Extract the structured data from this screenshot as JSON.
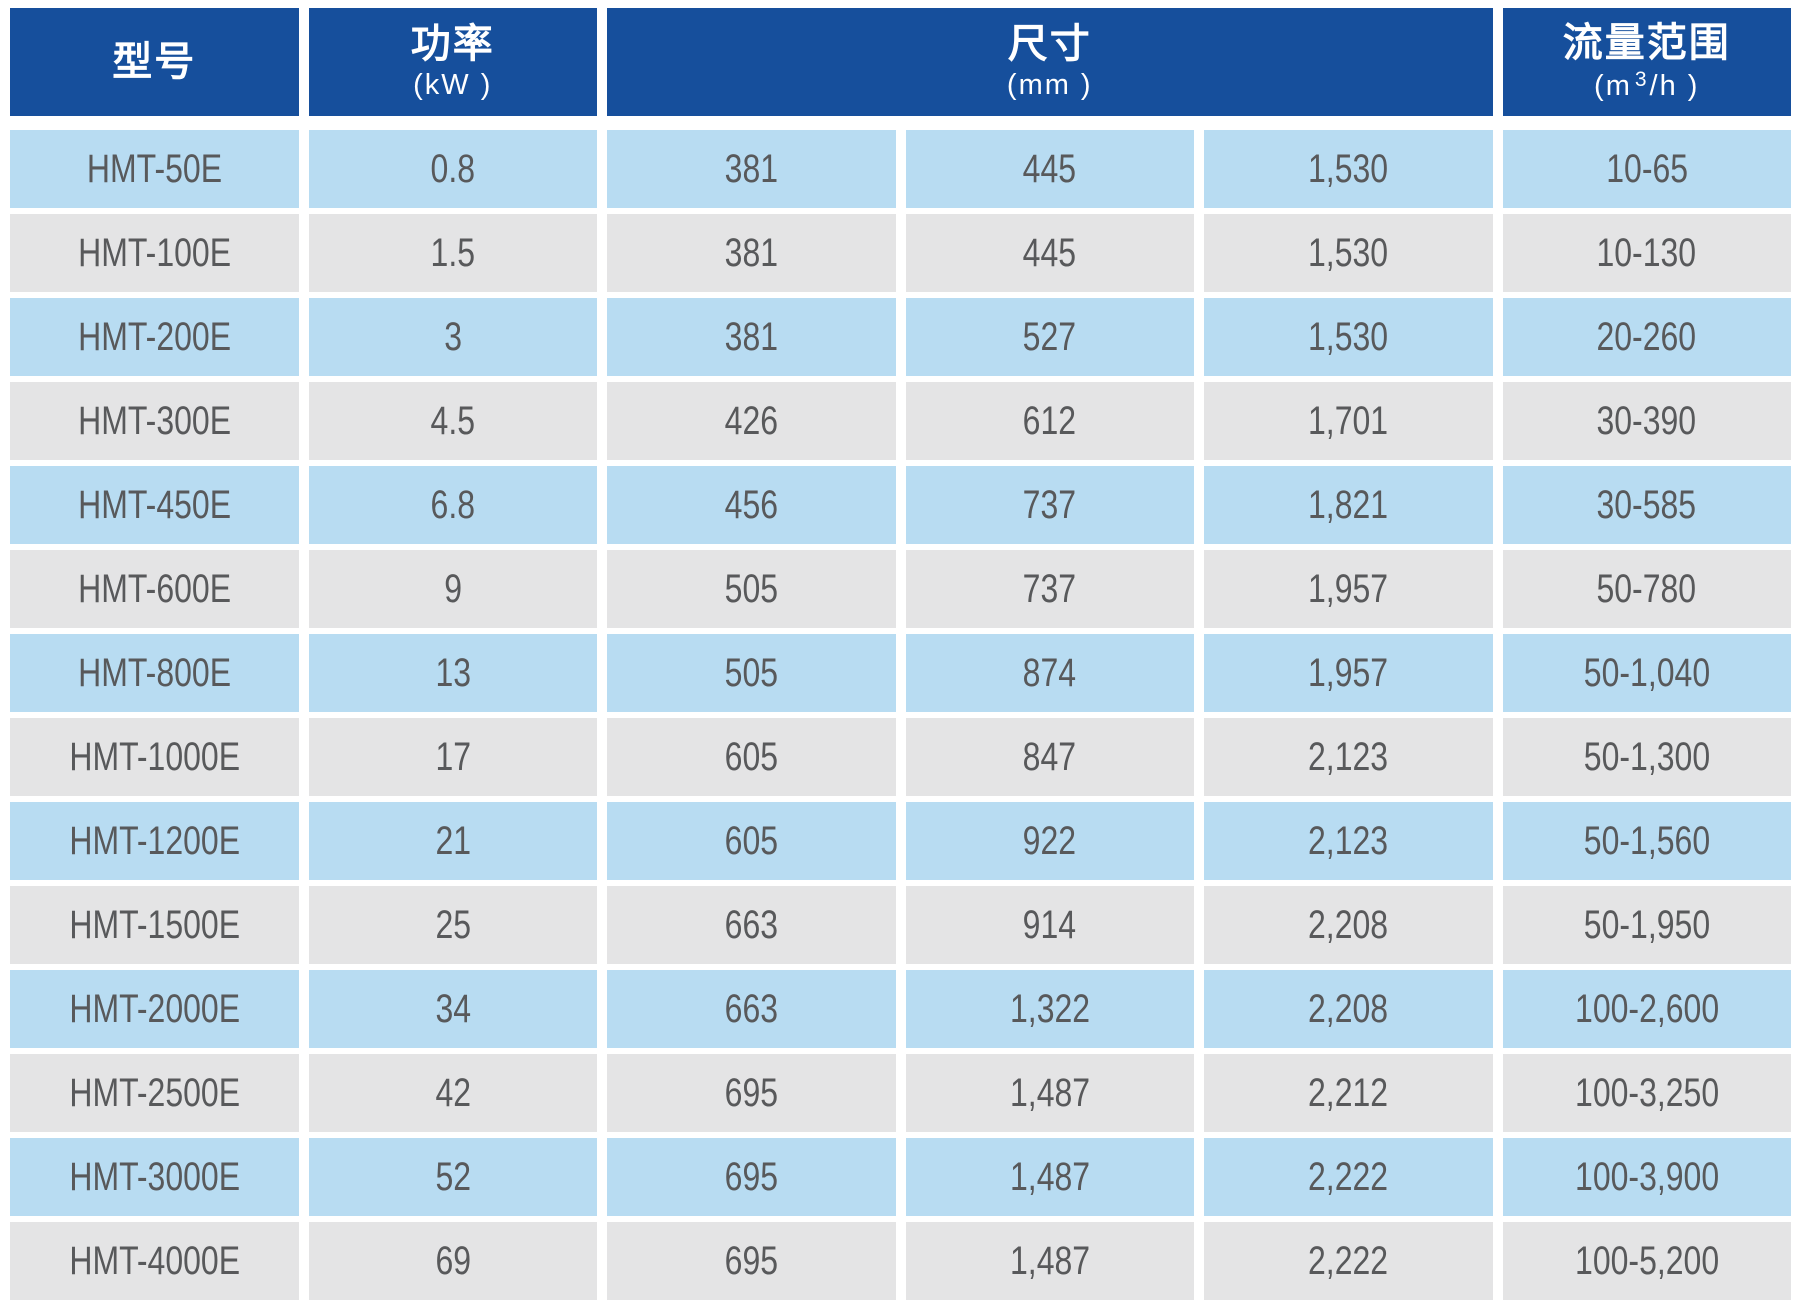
{
  "colors": {
    "header_bg": "#164f9c",
    "row_blue": "#b8dcf2",
    "row_gray": "#e4e4e5",
    "cell_text": "#58595b",
    "header_text": "#ffffff",
    "page_bg": "#ffffff"
  },
  "header": {
    "model_label": "型号",
    "power_label": "功率",
    "power_unit": "(kW )",
    "size_label": "尺寸",
    "size_unit": "(mm )",
    "flow_label": "流量范围",
    "flow_unit_prefix": "(m",
    "flow_unit_sup": "3",
    "flow_unit_suffix": "/h )"
  },
  "chart_data": {
    "type": "table",
    "columns": [
      "型号",
      "功率 (kW)",
      "尺寸 (mm)",
      "尺寸 (mm)",
      "尺寸 (mm)",
      "流量范围 (m3/h)"
    ],
    "rows": [
      [
        "HMT-50E",
        "0.8",
        "381",
        "445",
        "1,530",
        "10-65"
      ],
      [
        "HMT-100E",
        "1.5",
        "381",
        "445",
        "1,530",
        "10-130"
      ],
      [
        "HMT-200E",
        "3",
        "381",
        "527",
        "1,530",
        "20-260"
      ],
      [
        "HMT-300E",
        "4.5",
        "426",
        "612",
        "1,701",
        "30-390"
      ],
      [
        "HMT-450E",
        "6.8",
        "456",
        "737",
        "1,821",
        "30-585"
      ],
      [
        "HMT-600E",
        "9",
        "505",
        "737",
        "1,957",
        "50-780"
      ],
      [
        "HMT-800E",
        "13",
        "505",
        "874",
        "1,957",
        "50-1,040"
      ],
      [
        "HMT-1000E",
        "17",
        "605",
        "847",
        "2,123",
        "50-1,300"
      ],
      [
        "HMT-1200E",
        "21",
        "605",
        "922",
        "2,123",
        "50-1,560"
      ],
      [
        "HMT-1500E",
        "25",
        "663",
        "914",
        "2,208",
        "50-1,950"
      ],
      [
        "HMT-2000E",
        "34",
        "663",
        "1,322",
        "2,208",
        "100-2,600"
      ],
      [
        "HMT-2500E",
        "42",
        "695",
        "1,487",
        "2,212",
        "100-3,250"
      ],
      [
        "HMT-3000E",
        "52",
        "695",
        "1,487",
        "2,222",
        "100-3,900"
      ],
      [
        "HMT-4000E",
        "69",
        "695",
        "1,487",
        "2,222",
        "100-5,200"
      ]
    ]
  }
}
